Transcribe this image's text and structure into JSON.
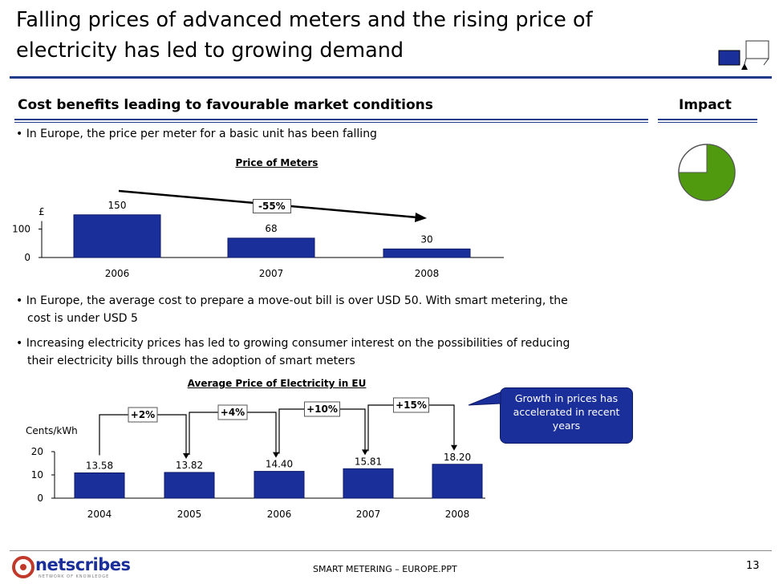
{
  "header": {
    "title_line1": "Falling prices of advanced meters and the rising price of",
    "title_line2": "electricity has led to growing demand"
  },
  "section": {
    "heading": "Cost benefits leading to favourable market conditions",
    "impact_label": "Impact"
  },
  "bullets": {
    "b1": "• In Europe, the price per meter for a basic unit has been falling",
    "b2_line1": "• In Europe, the average cost to prepare a move-out bill is over USD 50. With smart metering, the",
    "b2_line2": "cost is under USD 5",
    "b3_line1": "• Increasing electricity prices has led to growing consumer interest on the possibilities of reducing",
    "b3_line2": "their electricity bills through the adoption of smart meters"
  },
  "chart_data": [
    {
      "type": "bar",
      "title": "Price of Meters",
      "ylabel": "£",
      "categories": [
        "2006",
        "2007",
        "2008"
      ],
      "values": [
        150,
        68,
        30
      ],
      "value_labels": [
        "150",
        "68",
        "30"
      ],
      "yticks": [
        "100",
        "0"
      ],
      "ylim": [
        0,
        150
      ],
      "trend_annotation": "-55%",
      "bar_color": "#1b2f9a"
    },
    {
      "type": "bar",
      "title": "Average Price of Electricity in EU",
      "ylabel": "Cents/kWh",
      "categories": [
        "2004",
        "2005",
        "2006",
        "2007",
        "2008"
      ],
      "values": [
        13.58,
        13.82,
        14.4,
        15.81,
        18.2
      ],
      "value_labels": [
        "13.58",
        "13.82",
        "14.40",
        "15.81",
        "18.20"
      ],
      "yticks": [
        "20",
        "10",
        "0"
      ],
      "ylim": [
        0,
        20
      ],
      "changes": [
        "+2%",
        "+4%",
        "+10%",
        "+15%"
      ],
      "bar_color": "#1b2f9a"
    }
  ],
  "callout": {
    "text_line1": "Growth in prices has",
    "text_line2": "accelerated in recent",
    "text_line3": "years"
  },
  "impact": {
    "level_fraction": 0.75,
    "fill_color": "#4f9a0f"
  },
  "footer": {
    "logo_text": "netscribes",
    "logo_tagline": "NETWORK OF KNOWLEDGE",
    "filename": "SMART METERING – EUROPE.PPT",
    "page_number": "13"
  }
}
